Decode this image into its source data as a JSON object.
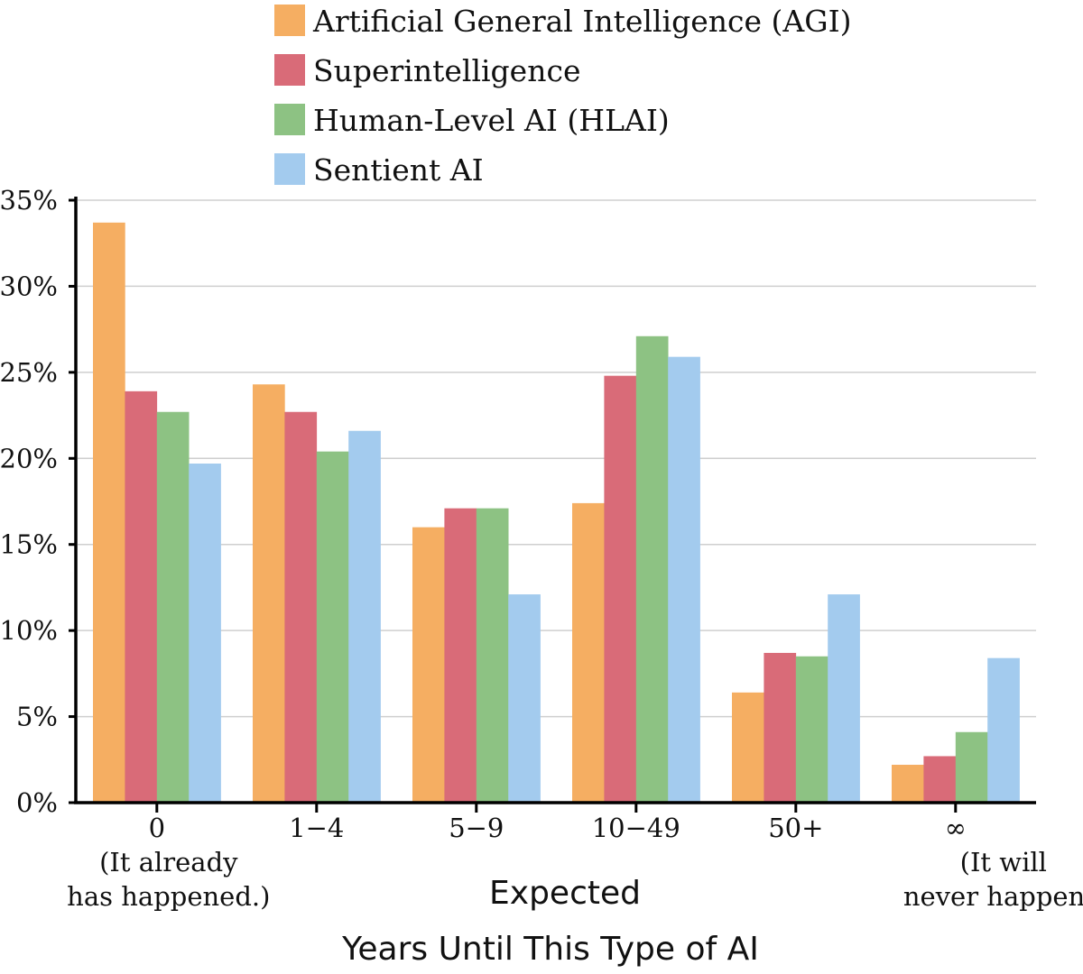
{
  "chart_data": {
    "type": "bar",
    "title": "",
    "xlabel": "Expected Years Until This Type of AI",
    "xlabel_lines": [
      "Expected",
      "Years Until This Type of AI"
    ],
    "ylabel": "",
    "ylim": [
      0,
      35
    ],
    "yticks": [
      0,
      5,
      10,
      15,
      20,
      25,
      30,
      35
    ],
    "ytick_labels": [
      "0%",
      "5%",
      "10%",
      "15%",
      "20%",
      "25%",
      "30%",
      "35%"
    ],
    "grid": true,
    "legend_position": "top",
    "categories": [
      "0",
      "1−4",
      "5−9",
      "10−49",
      "50+",
      "∞"
    ],
    "category_sublabels": [
      [
        "(It already",
        "has happened.)"
      ],
      [],
      [],
      [],
      [],
      [
        "(It will",
        "never happen.)"
      ]
    ],
    "series": [
      {
        "name": "Artificial General Intelligence (AGI)",
        "color": "#F5AE62",
        "values": [
          33.7,
          24.3,
          16.0,
          17.4,
          6.4,
          2.2
        ]
      },
      {
        "name": "Superintelligence",
        "color": "#D96B78",
        "values": [
          23.9,
          22.7,
          17.1,
          24.8,
          8.7,
          2.7
        ]
      },
      {
        "name": "Human-Level AI (HLAI)",
        "color": "#8DC283",
        "values": [
          22.7,
          20.4,
          17.1,
          27.1,
          8.5,
          4.1
        ]
      },
      {
        "name": "Sentient AI",
        "color": "#A3CBEE",
        "values": [
          19.7,
          21.6,
          12.1,
          25.9,
          12.1,
          8.4
        ]
      }
    ]
  }
}
